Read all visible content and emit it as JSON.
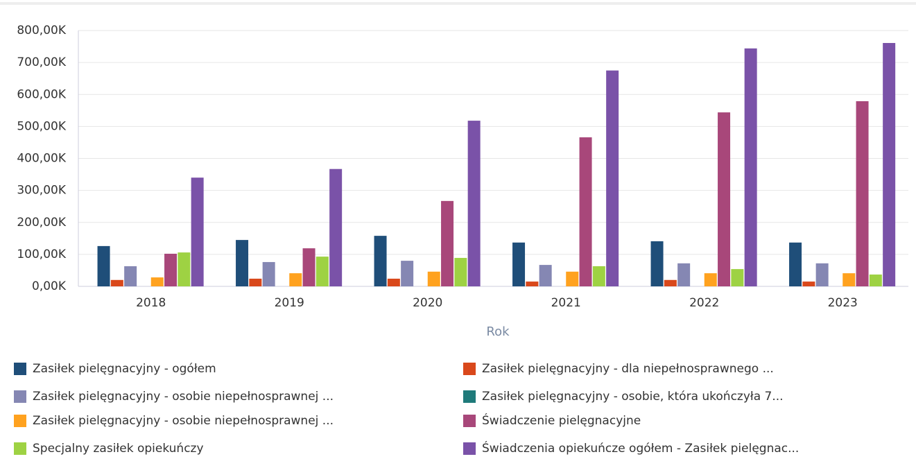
{
  "chart_data": {
    "type": "bar",
    "x_label": "Rok",
    "categories": [
      "2018",
      "2019",
      "2020",
      "2021",
      "2022",
      "2023"
    ],
    "ylim": [
      0,
      800000
    ],
    "yticks": [
      {
        "value": 0,
        "label": "0,00K"
      },
      {
        "value": 100000,
        "label": "100,00K"
      },
      {
        "value": 200000,
        "label": "200,00K"
      },
      {
        "value": 300000,
        "label": "300,00K"
      },
      {
        "value": 400000,
        "label": "400,00K"
      },
      {
        "value": 500000,
        "label": "500,00K"
      },
      {
        "value": 600000,
        "label": "600,00K"
      },
      {
        "value": 700000,
        "label": "700,00K"
      },
      {
        "value": 800000,
        "label": "800,00K"
      }
    ],
    "grid": true,
    "series": [
      {
        "name": "Zasiłek pielęgnacyjny - ogółem",
        "color": "#1f4e79",
        "values": [
          126000,
          145000,
          158000,
          137000,
          141000,
          137000
        ]
      },
      {
        "name": "Zasiłek pielęgnacyjny - dla niepełnosprawnego ...",
        "color": "#d9481b",
        "values": [
          20000,
          24000,
          24000,
          15000,
          20000,
          15000
        ]
      },
      {
        "name": "Zasiłek pielęgnacyjny - osobie niepełnosprawnej ...",
        "color": "#8587b3",
        "values": [
          63000,
          76000,
          80000,
          67000,
          72000,
          72000
        ]
      },
      {
        "name": "Zasiłek pielęgnacyjny - osobie, która ukończyła 7...",
        "color": "#1f7a7a",
        "values": [
          0,
          0,
          0,
          0,
          0,
          0
        ]
      },
      {
        "name": "Zasiłek pielęgnacyjny -  osobie niepełnosprawnej ...",
        "color": "#ffa21f",
        "values": [
          28000,
          41000,
          46000,
          46000,
          41000,
          41000
        ]
      },
      {
        "name": "Świadczenie pielęgnacyjne",
        "color": "#a8477a",
        "values": [
          102000,
          119000,
          267000,
          466000,
          544000,
          579000
        ]
      },
      {
        "name": "Specjalny zasiłek opiekuńczy",
        "color": "#9ed243",
        "values": [
          106000,
          93000,
          89000,
          63000,
          54000,
          37000
        ]
      },
      {
        "name": "Świadczenia opiekuńcze ogółem - Zasiłek pielęgnac...",
        "color": "#7a52a8",
        "values": [
          340000,
          367000,
          518000,
          675000,
          744000,
          761000
        ]
      }
    ]
  }
}
